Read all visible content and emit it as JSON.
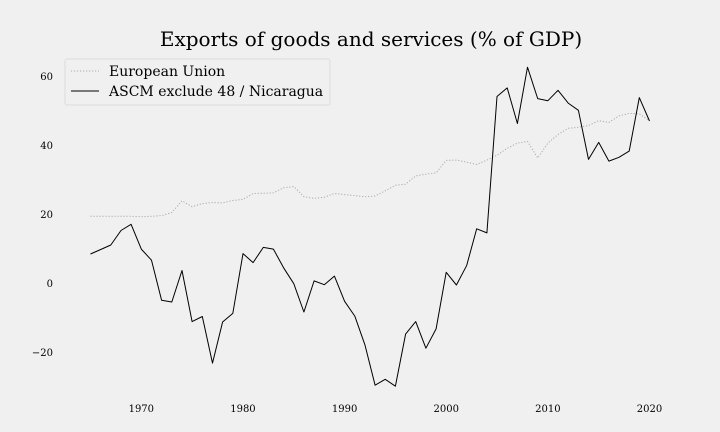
{
  "chart_data": {
    "type": "line",
    "title": "Exports of goods and services (% of GDP)",
    "xlabel": "",
    "ylabel": "",
    "xlim": [
      1962,
      2023
    ],
    "ylim": [
      -31,
      64
    ],
    "xticks": [
      1970,
      1980,
      1990,
      2000,
      2010,
      2020
    ],
    "yticks": [
      -20,
      0,
      20,
      40,
      60
    ],
    "ytick_labels": [
      "−20",
      "0",
      "20",
      "40",
      "60"
    ],
    "grid": false,
    "legend_position": "top-left",
    "series": [
      {
        "name": "European Union",
        "color": "#aaaaaa",
        "style": "dotted",
        "x": [
          1965,
          1966,
          1967,
          1968,
          1969,
          1970,
          1971,
          1972,
          1973,
          1974,
          1975,
          1976,
          1977,
          1978,
          1979,
          1980,
          1981,
          1982,
          1983,
          1984,
          1985,
          1986,
          1987,
          1988,
          1989,
          1990,
          1991,
          1992,
          1993,
          1994,
          1995,
          1996,
          1997,
          1998,
          1999,
          2000,
          2001,
          2002,
          2003,
          2004,
          2005,
          2006,
          2007,
          2008,
          2009,
          2010,
          2011,
          2012,
          2013,
          2014,
          2015,
          2016,
          2017,
          2018,
          2019,
          2020
        ],
        "y": [
          19.3,
          19.3,
          19.3,
          19.3,
          19.3,
          19.2,
          19.3,
          19.5,
          20.4,
          23.8,
          22.1,
          23.0,
          23.3,
          23.2,
          23.9,
          24.2,
          25.9,
          26.0,
          26.1,
          27.6,
          27.9,
          25.0,
          24.5,
          24.8,
          25.9,
          25.6,
          25.3,
          25.0,
          25.2,
          26.7,
          28.3,
          28.6,
          31.0,
          31.5,
          31.9,
          35.5,
          35.6,
          35.0,
          34.3,
          35.6,
          37.0,
          39.0,
          40.5,
          41.0,
          36.2,
          40.5,
          43.0,
          44.8,
          45.1,
          45.6,
          47.0,
          46.5,
          48.4,
          49.1,
          49.0,
          47.0
        ]
      },
      {
        "name": "ASCM exclude 48 / Nicaragua",
        "color": "#000000",
        "style": "solid",
        "x": [
          1965,
          1966,
          1967,
          1968,
          1969,
          1970,
          1971,
          1972,
          1973,
          1974,
          1975,
          1976,
          1977,
          1978,
          1979,
          1980,
          1981,
          1982,
          1983,
          1984,
          1985,
          1986,
          1987,
          1988,
          1989,
          1990,
          1991,
          1992,
          1993,
          1994,
          1995,
          1996,
          1997,
          1998,
          1999,
          2000,
          2001,
          2002,
          2003,
          2004,
          2005,
          2006,
          2007,
          2008,
          2009,
          2010,
          2011,
          2012,
          2013,
          2014,
          2015,
          2016,
          2017,
          2018,
          2019,
          2020
        ],
        "y": [
          8.4,
          9.7,
          11.0,
          15.2,
          17.0,
          9.8,
          6.6,
          -5.0,
          -5.5,
          3.6,
          -11.2,
          -9.7,
          -23.2,
          -11.3,
          -8.8,
          8.5,
          5.9,
          10.3,
          9.8,
          4.4,
          -0.2,
          -8.4,
          0.6,
          -0.5,
          2.0,
          -5.3,
          -9.6,
          -17.9,
          -29.6,
          -27.9,
          -29.9,
          -14.8,
          -11.2,
          -18.9,
          -13.3,
          3.1,
          -0.6,
          5.0,
          15.7,
          14.5,
          54.0,
          56.5,
          46.2,
          62.5,
          53.4,
          52.8,
          55.8,
          52.1,
          50.0,
          35.8,
          40.7,
          35.3,
          36.4,
          38.2,
          53.7,
          46.9
        ]
      }
    ]
  }
}
